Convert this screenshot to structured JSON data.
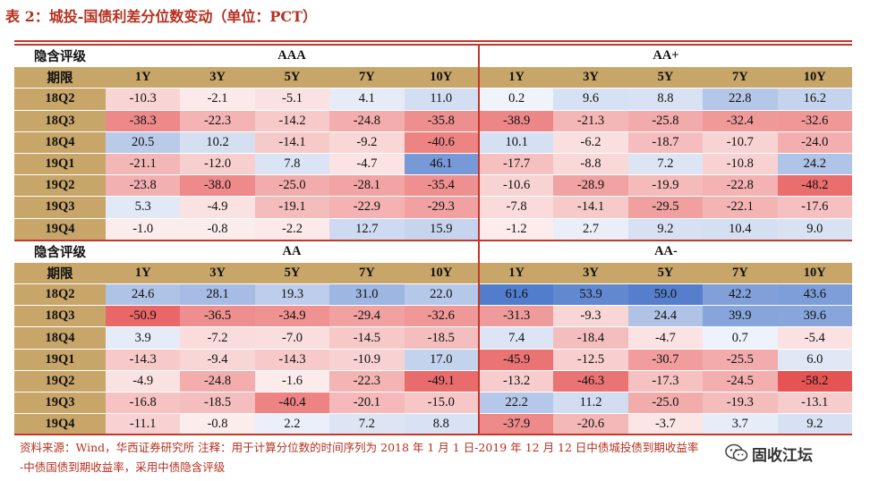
{
  "title": "表 2：城投-国债利差分位数变动（单位：PCT）",
  "row_header_rating": "隐含评级",
  "row_header_term": "期限",
  "terms": [
    "1Y",
    "3Y",
    "5Y",
    "7Y",
    "10Y"
  ],
  "colors": {
    "header_fill": "#c8a66a",
    "rule_red": "#c0392b",
    "positive_cell": "#3f6fc6",
    "negative_cell": "#e23b3b",
    "note_text": "#b5301f"
  },
  "blocks": [
    {
      "groups": [
        "AAA",
        "AA+"
      ],
      "rows": [
        {
          "label": "18Q2",
          "values": [
            -10.3,
            -2.1,
            -5.1,
            4.1,
            11.0,
            0.2,
            9.6,
            8.8,
            22.8,
            16.2
          ]
        },
        {
          "label": "18Q3",
          "values": [
            -38.3,
            -22.3,
            -14.2,
            -24.8,
            -35.8,
            -38.9,
            -21.3,
            -25.8,
            -32.4,
            -32.6
          ]
        },
        {
          "label": "18Q4",
          "values": [
            20.5,
            10.2,
            -14.1,
            -9.2,
            -40.6,
            10.1,
            -6.2,
            -18.7,
            -10.7,
            -24.0
          ]
        },
        {
          "label": "19Q1",
          "values": [
            -21.1,
            -12.0,
            7.8,
            -4.7,
            46.1,
            -17.7,
            -8.8,
            7.2,
            -10.8,
            24.2
          ]
        },
        {
          "label": "19Q2",
          "values": [
            -23.8,
            -38.0,
            -25.0,
            -28.1,
            -35.4,
            -10.6,
            -28.9,
            -19.9,
            -22.8,
            -48.2
          ]
        },
        {
          "label": "19Q3",
          "values": [
            5.3,
            -4.9,
            -19.1,
            -22.9,
            -29.3,
            -7.8,
            -14.1,
            -29.5,
            -22.1,
            -17.6
          ]
        },
        {
          "label": "19Q4",
          "values": [
            -1.0,
            -0.8,
            -2.2,
            12.7,
            15.9,
            -1.2,
            2.7,
            9.2,
            10.4,
            9.0
          ]
        }
      ]
    },
    {
      "groups": [
        "AA",
        "AA-"
      ],
      "rows": [
        {
          "label": "18Q2",
          "values": [
            24.6,
            28.1,
            19.3,
            31.0,
            22.0,
            61.6,
            53.9,
            59.0,
            42.2,
            43.6
          ]
        },
        {
          "label": "18Q3",
          "values": [
            -50.9,
            -36.5,
            -34.9,
            -29.4,
            -32.6,
            -31.3,
            -9.3,
            24.4,
            39.9,
            39.6
          ]
        },
        {
          "label": "18Q4",
          "values": [
            3.9,
            -7.2,
            -7.0,
            -14.5,
            -18.5,
            7.4,
            -18.4,
            -4.7,
            0.7,
            -5.4
          ]
        },
        {
          "label": "19Q1",
          "values": [
            -14.3,
            -9.4,
            -14.3,
            -10.9,
            17.0,
            -45.9,
            -12.5,
            -30.7,
            -25.5,
            6.0
          ]
        },
        {
          "label": "19Q2",
          "values": [
            -4.9,
            -24.8,
            -1.6,
            -22.3,
            -49.1,
            -13.2,
            -46.3,
            -17.3,
            -24.5,
            -58.2
          ]
        },
        {
          "label": "19Q3",
          "values": [
            -16.8,
            -18.5,
            -40.4,
            -20.1,
            -15.0,
            22.2,
            11.2,
            -25.0,
            -19.3,
            -13.1
          ]
        },
        {
          "label": "19Q4",
          "values": [
            -11.1,
            -0.8,
            2.2,
            7.2,
            8.8,
            -37.9,
            -20.6,
            -3.7,
            3.7,
            9.2
          ]
        }
      ]
    }
  ],
  "note_line1": "资料来源：Wind，华西证券研究所 注释：用于计算分位数的时间序列为 2018 年 1 月 1 日-2019 年 12 月 12 日中债城投债到期收益率",
  "note_line2": "-中债国债到期收益率，采用中债隐含评级",
  "watermark": "固收江坛",
  "watermark_icon": "wechat-icon"
}
